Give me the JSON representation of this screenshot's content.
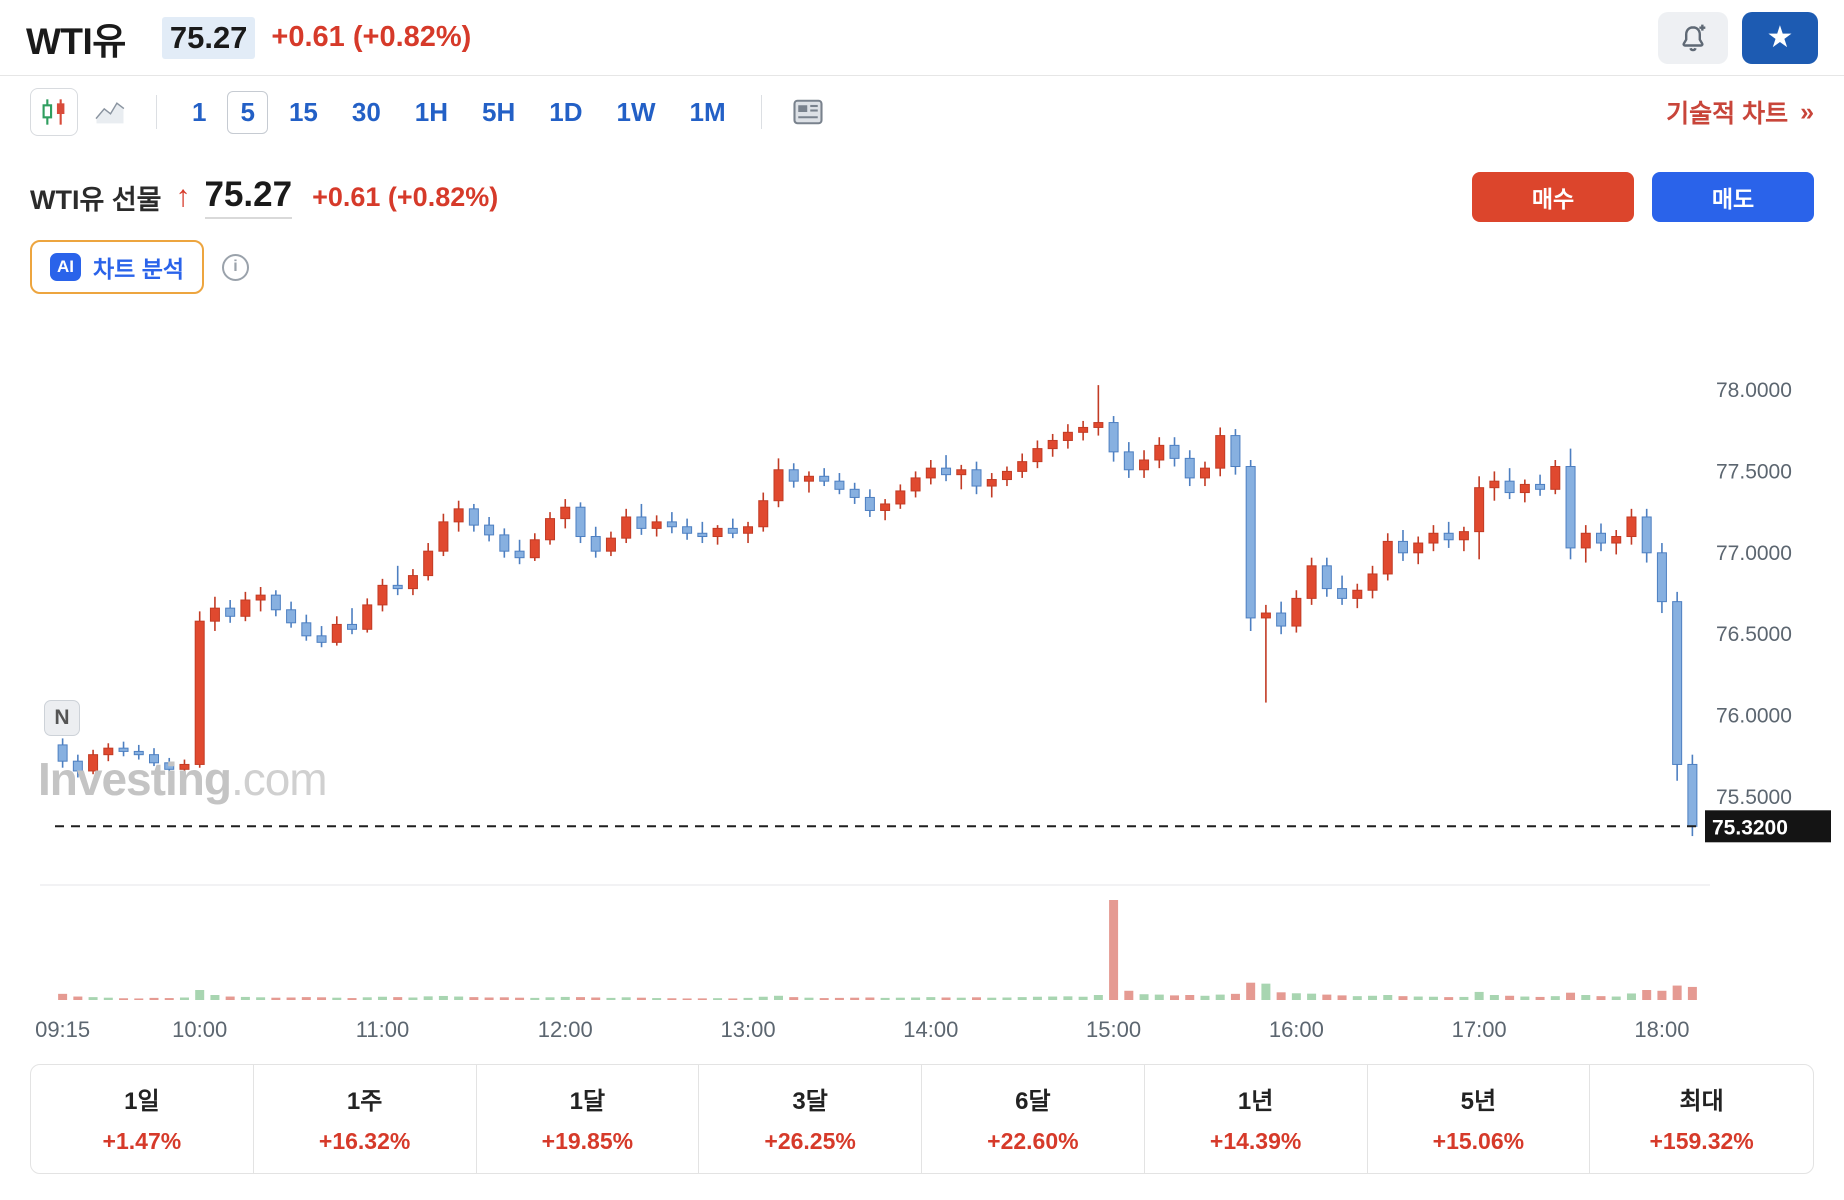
{
  "header": {
    "symbol": "WTI유",
    "price": "75.27",
    "change": "+0.61 (+0.82%)"
  },
  "toolbar": {
    "timeframes": [
      {
        "label": "1",
        "selected": false
      },
      {
        "label": "5",
        "selected": true
      },
      {
        "label": "15",
        "selected": false
      },
      {
        "label": "30",
        "selected": false
      },
      {
        "label": "1H",
        "selected": false
      },
      {
        "label": "5H",
        "selected": false
      },
      {
        "label": "1D",
        "selected": false
      },
      {
        "label": "1W",
        "selected": false
      },
      {
        "label": "1M",
        "selected": false
      }
    ],
    "chart_type_icons": [
      "candlestick-chart",
      "line-chart"
    ],
    "news_icon": "news-panel",
    "technical_chart_label": "기술적 차트",
    "technical_chart_arrow": "»"
  },
  "instrument": {
    "title": "WTI유 선물",
    "direction_glyph": "↑",
    "price": "75.27",
    "change": "+0.61 (+0.82%)",
    "buy_label": "매수",
    "sell_label": "매도"
  },
  "ai": {
    "badge": "AI",
    "label": "차트 분석",
    "info_glyph": "i"
  },
  "news_marker": "N",
  "watermark": {
    "brand": "Investing",
    "suffix": ".com"
  },
  "performance": [
    {
      "label": "1일",
      "value": "+1.47%"
    },
    {
      "label": "1주",
      "value": "+16.32%"
    },
    {
      "label": "1달",
      "value": "+19.85%"
    },
    {
      "label": "3달",
      "value": "+26.25%"
    },
    {
      "label": "6달",
      "value": "+22.60%"
    },
    {
      "label": "1년",
      "value": "+14.39%"
    },
    {
      "label": "5년",
      "value": "+15.06%"
    },
    {
      "label": "최대",
      "value": "+159.32%"
    }
  ],
  "colors": {
    "positive_red": "#d63a2a",
    "link_blue": "#2360c6",
    "buy_button": "#dc452c",
    "sell_button": "#2a63ea",
    "favorite_bg": "#1d5bb2",
    "candle_up": "#e0492f",
    "candle_down": "#87b0e0"
  },
  "chart_data": {
    "type": "candlestick",
    "title": "WTI유 선물",
    "interval": "5",
    "y_ticks": [
      "78.0000",
      "77.5000",
      "77.0000",
      "76.5000",
      "76.0000",
      "75.5000"
    ],
    "y_tick_values": [
      78.0,
      77.5,
      77.0,
      76.5,
      76.0,
      75.5
    ],
    "ylim": [
      75.2,
      78.15
    ],
    "x_labels": [
      {
        "index": 0,
        "label": "09:15"
      },
      {
        "index": 9,
        "label": "10:00"
      },
      {
        "index": 21,
        "label": "11:00"
      },
      {
        "index": 33,
        "label": "12:00"
      },
      {
        "index": 45,
        "label": "13:00"
      },
      {
        "index": 57,
        "label": "14:00"
      },
      {
        "index": 69,
        "label": "15:00"
      },
      {
        "index": 81,
        "label": "16:00"
      },
      {
        "index": 93,
        "label": "17:00"
      },
      {
        "index": 105,
        "label": "18:00"
      }
    ],
    "current_price": 75.32,
    "current_price_label": "75.3200",
    "up_color": "#e0492f",
    "up_stroke": "#c23b24",
    "down_color": "#87b0e0",
    "down_stroke": "#4d7fc1",
    "vol_up_color": "#a8d5b1",
    "vol_down_color": "#e59a92",
    "columns": [
      "time",
      "open",
      "high",
      "low",
      "close",
      "volume"
    ],
    "candles": [
      [
        "09:15",
        75.82,
        75.86,
        75.68,
        75.72,
        320
      ],
      [
        "09:20",
        75.72,
        75.76,
        75.62,
        75.66,
        180
      ],
      [
        "09:25",
        75.66,
        75.79,
        75.64,
        75.76,
        150
      ],
      [
        "09:30",
        75.76,
        75.83,
        75.72,
        75.8,
        120
      ],
      [
        "09:35",
        75.8,
        75.84,
        75.75,
        75.78,
        90
      ],
      [
        "09:40",
        75.78,
        75.82,
        75.73,
        75.76,
        80
      ],
      [
        "09:45",
        75.76,
        75.8,
        75.69,
        75.71,
        110
      ],
      [
        "09:50",
        75.71,
        75.74,
        75.64,
        75.67,
        100
      ],
      [
        "09:55",
        75.67,
        75.73,
        75.63,
        75.7,
        130
      ],
      [
        "10:00",
        75.7,
        76.64,
        75.68,
        76.58,
        520
      ],
      [
        "10:05",
        76.58,
        76.73,
        76.52,
        76.66,
        260
      ],
      [
        "10:10",
        76.66,
        76.71,
        76.57,
        76.61,
        180
      ],
      [
        "10:15",
        76.61,
        76.76,
        76.58,
        76.71,
        160
      ],
      [
        "10:20",
        76.71,
        76.79,
        76.64,
        76.74,
        140
      ],
      [
        "10:25",
        76.74,
        76.77,
        76.61,
        76.65,
        120
      ],
      [
        "10:30",
        76.65,
        76.7,
        76.54,
        76.57,
        130
      ],
      [
        "10:35",
        76.57,
        76.62,
        76.46,
        76.49,
        150
      ],
      [
        "10:40",
        76.49,
        76.55,
        76.42,
        76.45,
        140
      ],
      [
        "10:45",
        76.45,
        76.61,
        76.43,
        76.56,
        120
      ],
      [
        "10:50",
        76.56,
        76.66,
        76.5,
        76.53,
        100
      ],
      [
        "10:55",
        76.53,
        76.72,
        76.51,
        76.68,
        140
      ],
      [
        "11:00",
        76.68,
        76.84,
        76.64,
        76.8,
        170
      ],
      [
        "11:05",
        76.8,
        76.92,
        76.74,
        76.78,
        150
      ],
      [
        "11:10",
        76.78,
        76.9,
        76.74,
        76.86,
        130
      ],
      [
        "11:15",
        76.86,
        77.06,
        76.83,
        77.01,
        190
      ],
      [
        "11:20",
        77.01,
        77.24,
        76.98,
        77.19,
        210
      ],
      [
        "11:25",
        77.19,
        77.32,
        77.13,
        77.27,
        180
      ],
      [
        "11:30",
        77.27,
        77.3,
        77.13,
        77.17,
        150
      ],
      [
        "11:35",
        77.17,
        77.22,
        77.07,
        77.11,
        130
      ],
      [
        "11:40",
        77.11,
        77.15,
        76.97,
        77.01,
        140
      ],
      [
        "11:45",
        77.01,
        77.08,
        76.93,
        76.97,
        120
      ],
      [
        "11:50",
        76.97,
        77.12,
        76.95,
        77.08,
        110
      ],
      [
        "11:55",
        77.08,
        77.25,
        77.05,
        77.21,
        140
      ],
      [
        "12:00",
        77.21,
        77.33,
        77.15,
        77.28,
        160
      ],
      [
        "12:05",
        77.28,
        77.31,
        77.06,
        77.1,
        150
      ],
      [
        "12:10",
        77.1,
        77.16,
        76.97,
        77.01,
        130
      ],
      [
        "12:15",
        77.01,
        77.13,
        76.98,
        77.09,
        110
      ],
      [
        "12:20",
        77.09,
        77.27,
        77.06,
        77.22,
        140
      ],
      [
        "12:25",
        77.22,
        77.3,
        77.11,
        77.15,
        120
      ],
      [
        "12:30",
        77.15,
        77.23,
        77.1,
        77.19,
        100
      ],
      [
        "12:35",
        77.19,
        77.25,
        77.12,
        77.16,
        90
      ],
      [
        "12:40",
        77.16,
        77.21,
        77.08,
        77.12,
        80
      ],
      [
        "12:45",
        77.12,
        77.19,
        77.06,
        77.1,
        85
      ],
      [
        "12:50",
        77.1,
        77.17,
        77.05,
        77.15,
        95
      ],
      [
        "12:55",
        77.15,
        77.21,
        77.09,
        77.12,
        80
      ],
      [
        "13:00",
        77.12,
        77.19,
        77.06,
        77.16,
        110
      ],
      [
        "13:05",
        77.16,
        77.37,
        77.13,
        77.32,
        170
      ],
      [
        "13:10",
        77.32,
        77.58,
        77.28,
        77.51,
        220
      ],
      [
        "13:15",
        77.51,
        77.55,
        77.4,
        77.44,
        150
      ],
      [
        "13:20",
        77.44,
        77.5,
        77.37,
        77.47,
        120
      ],
      [
        "13:25",
        77.47,
        77.52,
        77.41,
        77.44,
        100
      ],
      [
        "13:30",
        77.44,
        77.49,
        77.36,
        77.39,
        110
      ],
      [
        "13:35",
        77.39,
        77.43,
        77.3,
        77.34,
        120
      ],
      [
        "13:40",
        77.34,
        77.39,
        77.22,
        77.26,
        130
      ],
      [
        "13:45",
        77.26,
        77.33,
        77.2,
        77.3,
        110
      ],
      [
        "13:50",
        77.3,
        77.42,
        77.27,
        77.38,
        120
      ],
      [
        "13:55",
        77.38,
        77.5,
        77.34,
        77.46,
        130
      ],
      [
        "14:00",
        77.46,
        77.57,
        77.42,
        77.52,
        150
      ],
      [
        "14:05",
        77.52,
        77.6,
        77.44,
        77.48,
        130
      ],
      [
        "14:10",
        77.48,
        77.54,
        77.39,
        77.51,
        120
      ],
      [
        "14:15",
        77.51,
        77.56,
        77.36,
        77.41,
        140
      ],
      [
        "14:20",
        77.41,
        77.49,
        77.34,
        77.45,
        120
      ],
      [
        "14:25",
        77.45,
        77.53,
        77.41,
        77.5,
        130
      ],
      [
        "14:30",
        77.5,
        77.61,
        77.46,
        77.56,
        150
      ],
      [
        "14:35",
        77.56,
        77.69,
        77.52,
        77.64,
        170
      ],
      [
        "14:40",
        77.64,
        77.73,
        77.59,
        77.69,
        180
      ],
      [
        "14:45",
        77.69,
        77.79,
        77.64,
        77.74,
        190
      ],
      [
        "14:50",
        77.74,
        77.81,
        77.69,
        77.77,
        170
      ],
      [
        "14:55",
        77.77,
        78.03,
        77.72,
        77.8,
        260
      ],
      [
        "15:00",
        77.8,
        77.84,
        77.56,
        77.62,
        5200
      ],
      [
        "15:05",
        77.62,
        77.68,
        77.46,
        77.51,
        480
      ],
      [
        "15:10",
        77.51,
        77.63,
        77.46,
        77.57,
        300
      ],
      [
        "15:15",
        77.57,
        77.71,
        77.52,
        77.66,
        280
      ],
      [
        "15:20",
        77.66,
        77.71,
        77.53,
        77.58,
        240
      ],
      [
        "15:25",
        77.58,
        77.63,
        77.41,
        77.46,
        260
      ],
      [
        "15:30",
        77.46,
        77.56,
        77.41,
        77.52,
        220
      ],
      [
        "15:35",
        77.52,
        77.77,
        77.47,
        77.72,
        280
      ],
      [
        "15:40",
        77.72,
        77.76,
        77.48,
        77.53,
        320
      ],
      [
        "15:45",
        77.53,
        77.57,
        76.52,
        76.6,
        900
      ],
      [
        "15:50",
        76.6,
        76.68,
        76.08,
        76.63,
        850
      ],
      [
        "15:55",
        76.63,
        76.7,
        76.5,
        76.55,
        400
      ],
      [
        "16:00",
        76.55,
        76.77,
        76.51,
        76.72,
        350
      ],
      [
        "16:05",
        76.72,
        76.97,
        76.68,
        76.92,
        330
      ],
      [
        "16:10",
        76.92,
        76.97,
        76.73,
        76.78,
        280
      ],
      [
        "16:15",
        76.78,
        76.86,
        76.68,
        76.72,
        240
      ],
      [
        "16:20",
        76.72,
        76.81,
        76.66,
        76.77,
        200
      ],
      [
        "16:25",
        76.77,
        76.92,
        76.72,
        76.87,
        220
      ],
      [
        "16:30",
        76.87,
        77.12,
        76.83,
        77.07,
        260
      ],
      [
        "16:35",
        77.07,
        77.14,
        76.95,
        77.0,
        200
      ],
      [
        "16:40",
        77.0,
        77.1,
        76.93,
        77.06,
        180
      ],
      [
        "16:45",
        77.06,
        77.17,
        77.01,
        77.12,
        170
      ],
      [
        "16:50",
        77.12,
        77.19,
        77.03,
        77.08,
        150
      ],
      [
        "16:55",
        77.08,
        77.16,
        77.01,
        77.13,
        160
      ],
      [
        "17:00",
        77.13,
        77.47,
        76.96,
        77.4,
        420
      ],
      [
        "17:05",
        77.4,
        77.5,
        77.32,
        77.44,
        260
      ],
      [
        "17:10",
        77.44,
        77.52,
        77.33,
        77.37,
        220
      ],
      [
        "17:15",
        77.37,
        77.45,
        77.31,
        77.42,
        180
      ],
      [
        "17:20",
        77.42,
        77.48,
        77.35,
        77.39,
        160
      ],
      [
        "17:25",
        77.39,
        77.57,
        77.36,
        77.53,
        200
      ],
      [
        "17:30",
        77.53,
        77.64,
        76.96,
        77.03,
        380
      ],
      [
        "17:35",
        77.03,
        77.17,
        76.94,
        77.12,
        260
      ],
      [
        "17:40",
        77.12,
        77.18,
        77.01,
        77.06,
        200
      ],
      [
        "17:45",
        77.06,
        77.14,
        76.99,
        77.1,
        180
      ],
      [
        "17:50",
        77.1,
        77.27,
        77.05,
        77.22,
        340
      ],
      [
        "17:55",
        77.22,
        77.27,
        76.94,
        77.0,
        520
      ],
      [
        "18:00",
        77.0,
        77.06,
        76.63,
        76.7,
        480
      ],
      [
        "18:05",
        76.7,
        76.76,
        75.6,
        75.7,
        750
      ],
      [
        "18:10",
        75.7,
        75.76,
        75.26,
        75.32,
        680
      ]
    ]
  }
}
